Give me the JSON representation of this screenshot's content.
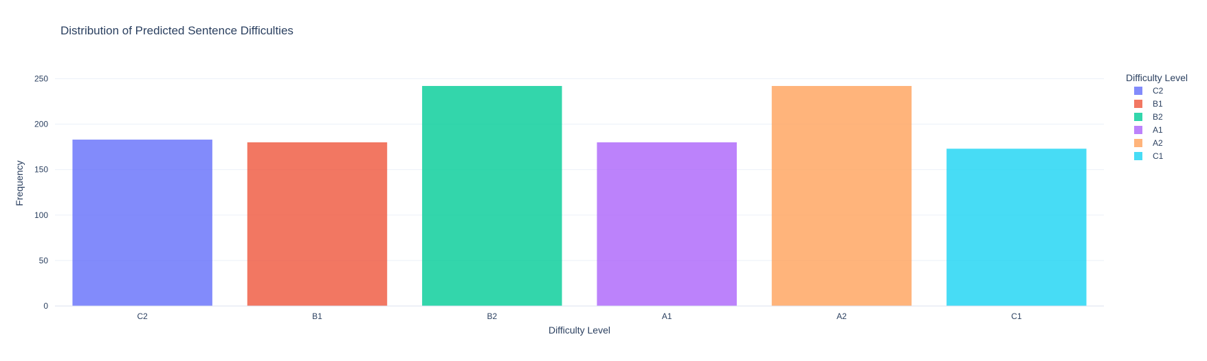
{
  "chart_data": {
    "type": "bar",
    "title": "Distribution of Predicted Sentence Difficulties",
    "xlabel": "Difficulty Level",
    "ylabel": "Frequency",
    "categories": [
      "C2",
      "B1",
      "B2",
      "A1",
      "A2",
      "C1"
    ],
    "values": [
      183,
      180,
      242,
      180,
      242,
      173
    ],
    "ylim": [
      0,
      270
    ],
    "yticks": [
      0,
      50,
      100,
      150,
      200,
      250
    ],
    "grid": true,
    "legend": {
      "title": "Difficulty Level",
      "placement": "top-right",
      "entries": [
        "C2",
        "B1",
        "B2",
        "A1",
        "A2",
        "C1"
      ]
    },
    "colors": [
      "#636efa",
      "#ef553b",
      "#00cc96",
      "#ab63fa",
      "#ffa15a",
      "#19d3f3"
    ],
    "opacity": 0.8
  }
}
